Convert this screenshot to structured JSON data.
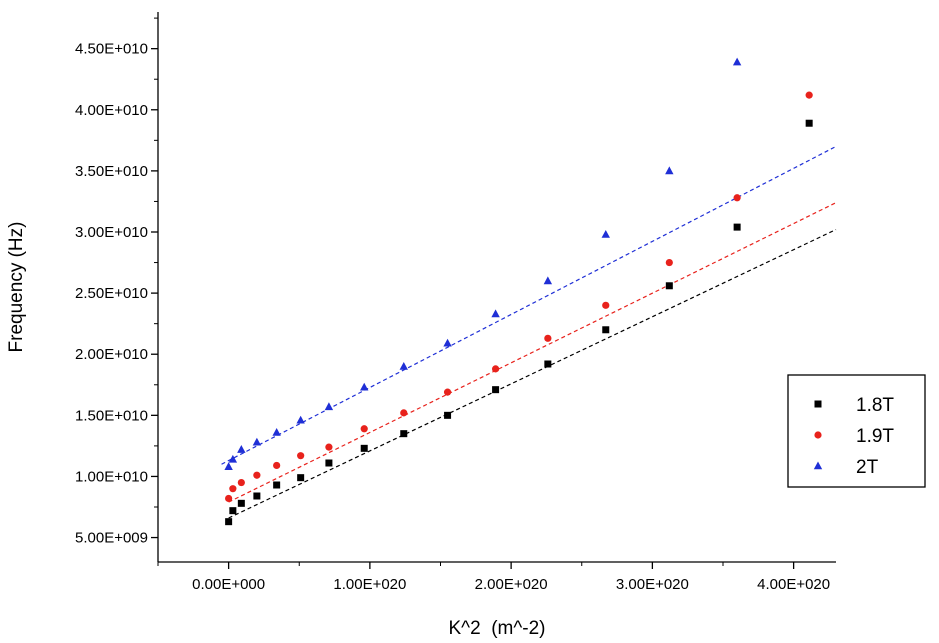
{
  "chart_data": {
    "type": "scatter",
    "xlabel": "K^2  (m^-2)",
    "ylabel": "Frequency (Hz)",
    "xlim": [
      -5e+19,
      4.3e+20
    ],
    "ylim": [
      3000000000.0,
      48000000000.0
    ],
    "x_ticks": [
      0,
      1e+20,
      2e+20,
      3e+20,
      4e+20
    ],
    "x_tick_labels": [
      "0.00E+000",
      "1.00E+020",
      "2.00E+020",
      "3.00E+020",
      "4.00E+020"
    ],
    "y_ticks": [
      5000000000.0,
      10000000000.0,
      15000000000.0,
      20000000000.0,
      25000000000.0,
      30000000000.0,
      35000000000.0,
      40000000000.0,
      45000000000.0
    ],
    "y_tick_labels": [
      "5.00E+009",
      "1.00E+010",
      "1.50E+010",
      "2.00E+010",
      "2.50E+010",
      "3.00E+010",
      "3.50E+010",
      "4.00E+010",
      "4.50E+010"
    ],
    "grid": false,
    "legend_position": "right",
    "series": [
      {
        "name": "1.8T",
        "marker": "square",
        "color": "#000000",
        "x": [
          0,
          3e+18,
          9e+18,
          2e+19,
          3.4e+19,
          5.1e+19,
          7.1e+19,
          9.6e+19,
          1.24e+20,
          1.55e+20,
          1.89e+20,
          2.26e+20,
          2.67e+20,
          3.12e+20,
          3.6e+20,
          4.11e+20
        ],
        "y": [
          6300000000.0,
          7200000000.0,
          7800000000.0,
          8400000000.0,
          9300000000.0,
          9900000000.0,
          11100000000.0,
          12300000000.0,
          13500000000.0,
          15000000000.0,
          17100000000.0,
          19200000000.0,
          22000000000.0,
          25600000000.0,
          30400000000.0,
          38900000000.0
        ],
        "fit": {
          "x": [
            0,
            4.3e+20
          ],
          "y": [
            6600000000.0,
            30200000000.0
          ]
        }
      },
      {
        "name": "1.9T",
        "marker": "circle",
        "color": "#e8221c",
        "x": [
          0,
          3e+18,
          9e+18,
          2e+19,
          3.4e+19,
          5.1e+19,
          7.1e+19,
          9.6e+19,
          1.24e+20,
          1.55e+20,
          1.89e+20,
          2.26e+20,
          2.67e+20,
          3.12e+20,
          3.6e+20,
          4.11e+20
        ],
        "y": [
          8200000000.0,
          9000000000.0,
          9500000000.0,
          10100000000.0,
          10900000000.0,
          11700000000.0,
          12400000000.0,
          13900000000.0,
          15200000000.0,
          16900000000.0,
          18800000000.0,
          21300000000.0,
          24000000000.0,
          27500000000.0,
          32800000000.0,
          41200000000.0
        ],
        "fit": {
          "x": [
            0,
            4.3e+20
          ],
          "y": [
            7900000000.0,
            32400000000.0
          ]
        }
      },
      {
        "name": "2T",
        "marker": "triangle",
        "color": "#1f2fd6",
        "x": [
          0,
          3e+18,
          9e+18,
          2e+19,
          3.4e+19,
          5.1e+19,
          7.1e+19,
          9.6e+19,
          1.24e+20,
          1.55e+20,
          1.89e+20,
          2.26e+20,
          2.67e+20,
          3.12e+20,
          3.6e+20
        ],
        "y": [
          10800000000.0,
          11400000000.0,
          12200000000.0,
          12800000000.0,
          13600000000.0,
          14600000000.0,
          15700000000.0,
          17300000000.0,
          19000000000.0,
          20900000000.0,
          23300000000.0,
          26000000000.0,
          29800000000.0,
          35000000000.0,
          43900000000.0
        ],
        "fit": {
          "x": [
            -5e+18,
            4.3e+20
          ],
          "y": [
            11000000000.0,
            37000000000.0
          ]
        }
      }
    ]
  }
}
